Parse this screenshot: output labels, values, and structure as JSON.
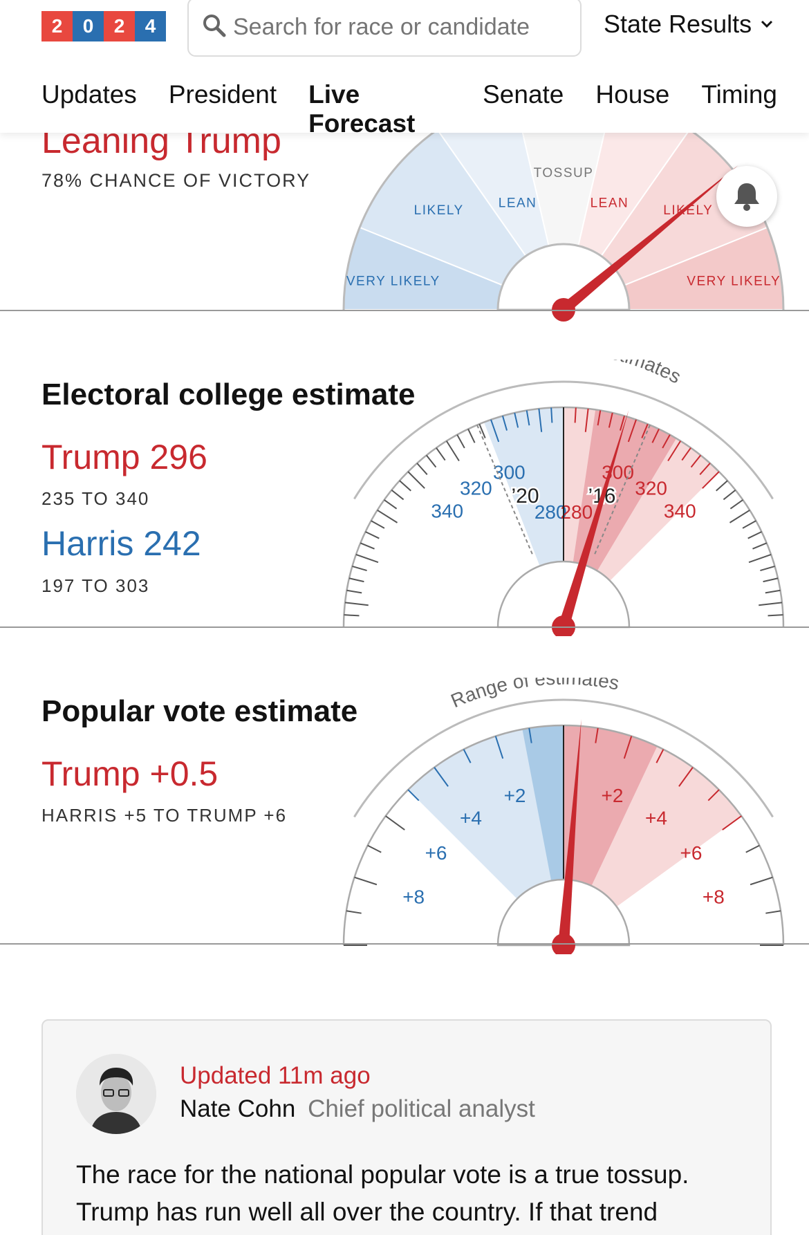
{
  "header": {
    "logo_digits": [
      "2",
      "0",
      "2",
      "4"
    ],
    "logo_colors": [
      "#e8483f",
      "#2a6fb0",
      "#e8483f",
      "#2a6fb0"
    ],
    "search_placeholder": "Search for race or candidate",
    "state_results_label": "State Results",
    "nav": [
      {
        "label": "Updates",
        "active": false
      },
      {
        "label": "President",
        "active": false
      },
      {
        "label": "Live Forecast",
        "active": true
      },
      {
        "label": "Senate",
        "active": false
      },
      {
        "label": "House",
        "active": false
      },
      {
        "label": "Timing",
        "active": false
      }
    ]
  },
  "colors": {
    "red": "#c8292f",
    "blue": "#2a6fb0"
  },
  "win_gauge": {
    "headline": "Leaning Trump",
    "chance_text": "78% CHANCE OF VICTORY",
    "zone_labels": [
      "VERY LIKELY",
      "LIKELY",
      "LEAN",
      "TOSSUP",
      "LEAN",
      "LIKELY",
      "VERY LIKELY"
    ],
    "trump_win_probability": 0.78
  },
  "electoral": {
    "title": "Electoral college estimate",
    "trump_label": "Trump 296",
    "trump_range": "235 TO 340",
    "harris_label": "Harris 242",
    "harris_range": "197 TO 303",
    "range_caption": "Range of estimates",
    "tick_labels_blue": [
      "280",
      "300",
      "320",
      "340"
    ],
    "tick_labels_red": [
      "280",
      "300",
      "320",
      "340"
    ],
    "marker_2020": "’20",
    "marker_2016": "’16",
    "estimate": 296
  },
  "popular": {
    "title": "Popular vote estimate",
    "trump_label": "Trump +0.5",
    "range_text": "HARRIS +5 TO TRUMP +6",
    "range_caption": "Range of estimates",
    "tick_labels_blue": [
      "+2",
      "+4",
      "+6",
      "+8"
    ],
    "tick_labels_red": [
      "+2",
      "+4",
      "+6",
      "+8"
    ],
    "estimate_margin": 0.5
  },
  "update": {
    "updated": "Updated 11m ago",
    "author": "Nate Cohn",
    "role": "Chief political analyst",
    "text": "The race for the national popular vote is a true tossup. Trump has run well all over the country. If that trend"
  }
}
